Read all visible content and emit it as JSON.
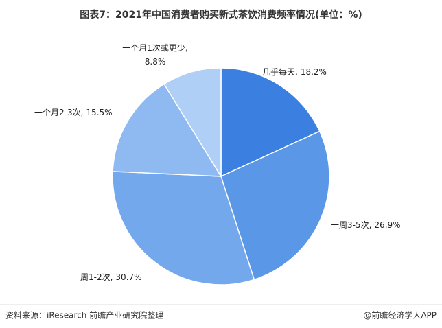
{
  "chart_data": {
    "type": "pie",
    "title": "图表7：2021年中国消费者购买新式茶饮消费频率情况(单位：%)",
    "categories": [
      "几乎每天,",
      "一周3-5次,",
      "一周1-2次,",
      "一个月2-3次,",
      "一个月1次或更少,"
    ],
    "values": [
      18.2,
      26.9,
      30.7,
      15.5,
      8.8
    ],
    "value_labels": [
      "18.2%",
      "26.9%",
      "30.7%",
      "15.5%",
      "8.8%"
    ],
    "colors": [
      "#3b7fe0",
      "#5b97e7",
      "#74a8ed",
      "#8fb9f1",
      "#afcff7"
    ]
  },
  "footer": {
    "source": "资料来源：iResearch 前瞻产业研究院整理",
    "credit": "@前瞻经济学人APP"
  }
}
